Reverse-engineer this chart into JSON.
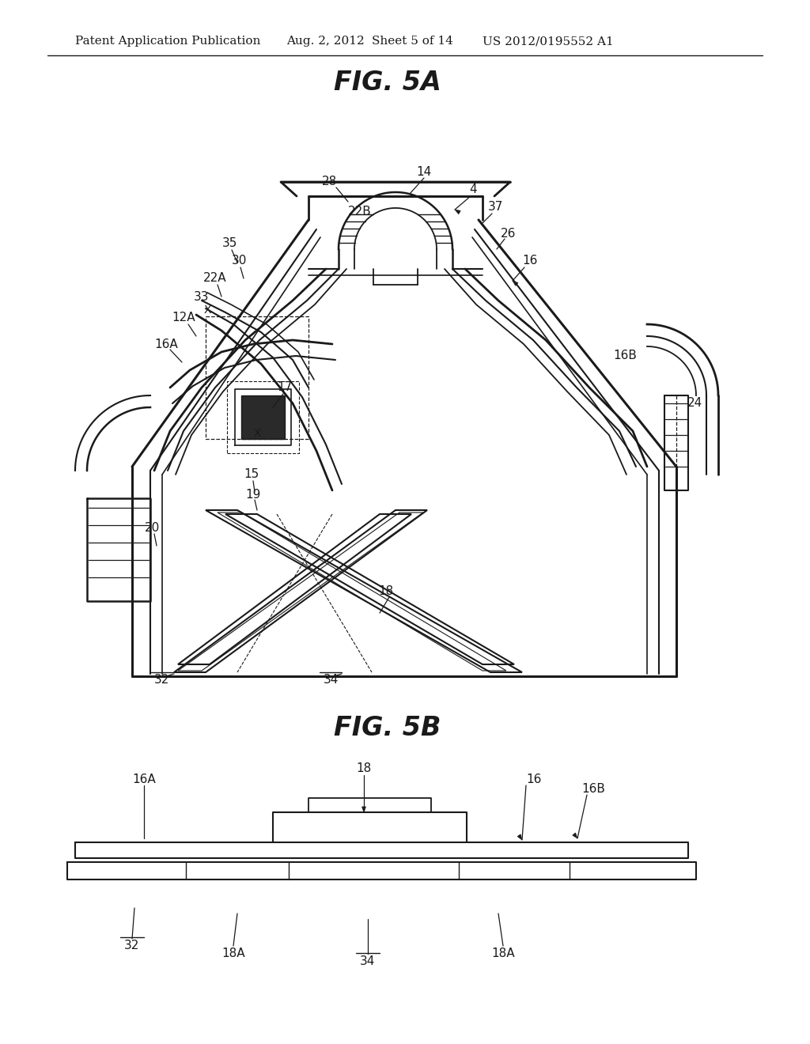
{
  "bg_color": "#ffffff",
  "line_color": "#1a1a1a",
  "header_text1": "Patent Application Publication",
  "header_text2": "Aug. 2, 2012",
  "header_text3": "Sheet 5 of 14",
  "header_text4": "US 2012/0195552 A1",
  "fig5a_title": "FIG. 5A",
  "fig5b_title": "FIG. 5B",
  "title_fontsize": 24,
  "label_fontsize": 11,
  "header_fontsize": 11
}
